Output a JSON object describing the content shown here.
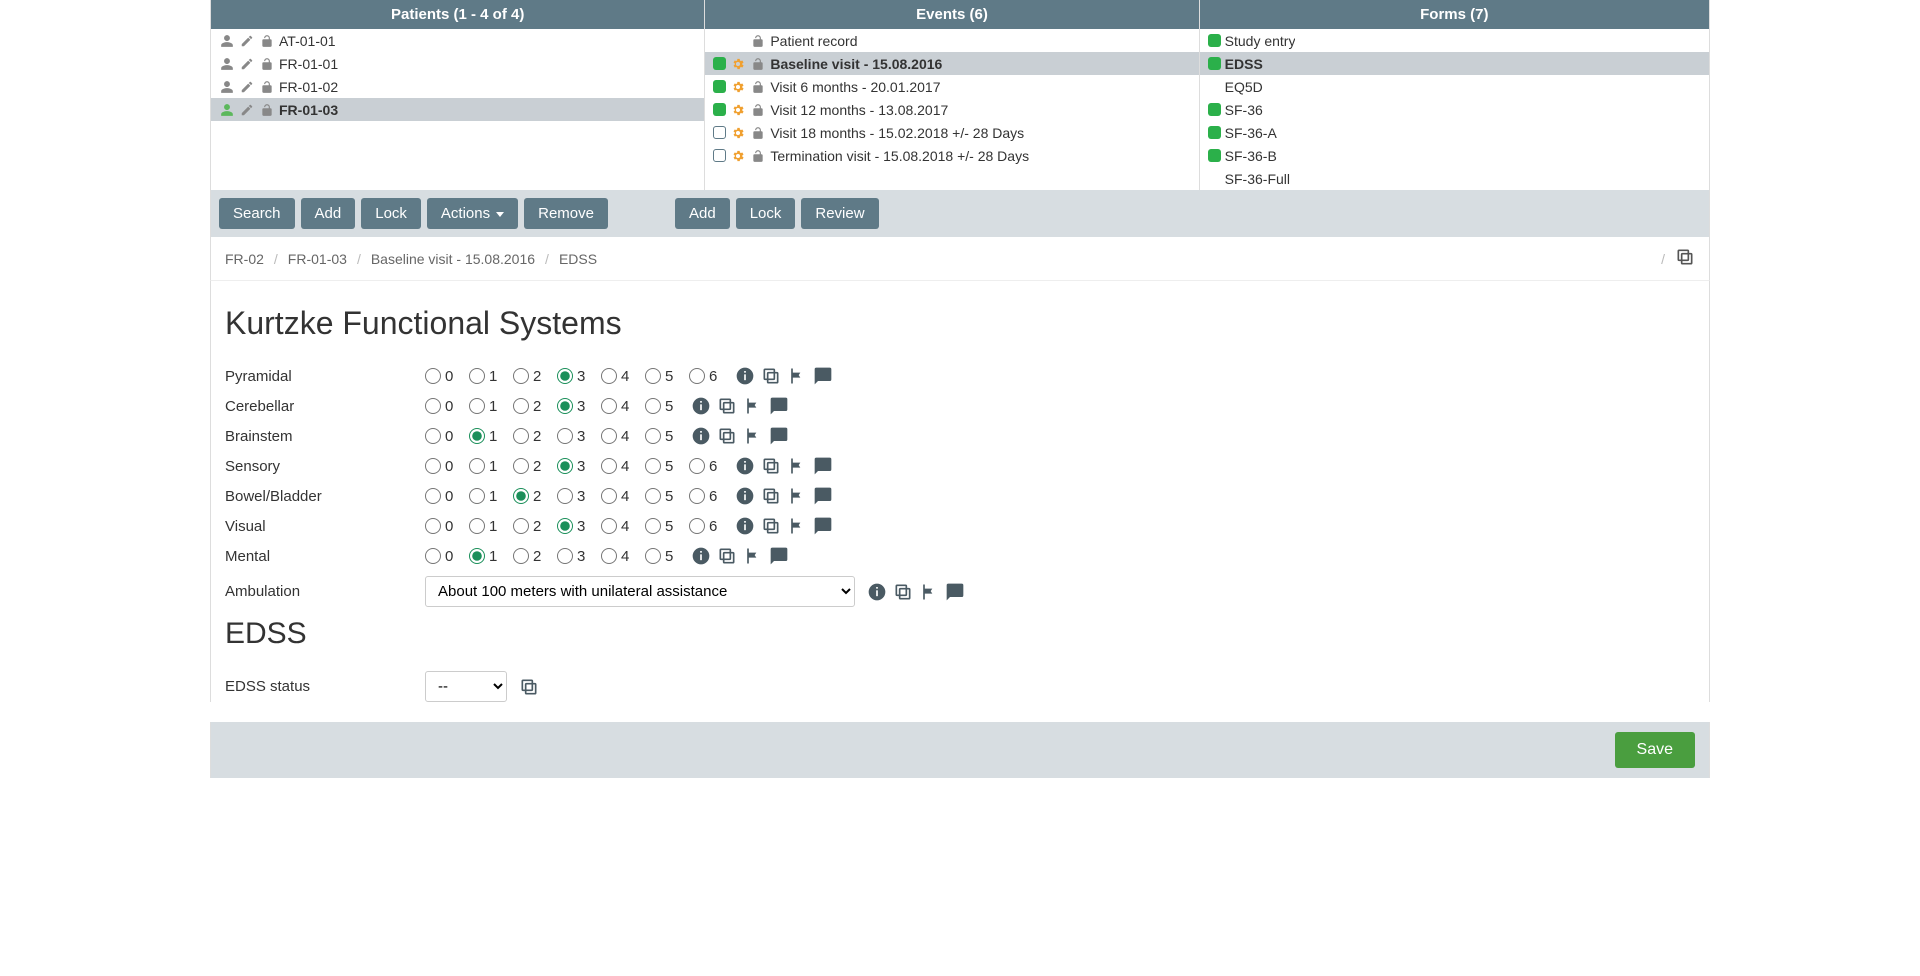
{
  "colors": {
    "header": "#5f7a87",
    "selected": "#c9cfd4",
    "green": "#2bb04a",
    "save": "#4a9e3f"
  },
  "patients": {
    "header": "Patients (1 - 4 of 4)",
    "rows": [
      {
        "id": "AT-01-01",
        "selected": false
      },
      {
        "id": "FR-01-01",
        "selected": false
      },
      {
        "id": "FR-01-02",
        "selected": false
      },
      {
        "id": "FR-01-03",
        "selected": true
      }
    ],
    "buttons": {
      "search": "Search",
      "add": "Add",
      "lock": "Lock",
      "actions": "Actions",
      "remove": "Remove"
    }
  },
  "events": {
    "header": "Events (6)",
    "rows": [
      {
        "label": "Patient record",
        "status": "none",
        "selected": false
      },
      {
        "label": "Baseline visit - 15.08.2016",
        "status": "green",
        "selected": true
      },
      {
        "label": "Visit 6 months - 20.01.2017",
        "status": "green",
        "selected": false
      },
      {
        "label": "Visit 12 months - 13.08.2017",
        "status": "green",
        "selected": false
      },
      {
        "label": "Visit 18 months - 15.02.2018 +/- 28 Days",
        "status": "empty",
        "selected": false
      },
      {
        "label": "Termination visit - 15.08.2018 +/- 28 Days",
        "status": "empty",
        "selected": false
      }
    ],
    "buttons": {
      "add": "Add",
      "lock": "Lock",
      "review": "Review"
    }
  },
  "forms": {
    "header": "Forms (7)",
    "rows": [
      {
        "label": "Study entry",
        "status": "green",
        "selected": false
      },
      {
        "label": "EDSS",
        "status": "green",
        "selected": true
      },
      {
        "label": "EQ5D",
        "status": "none",
        "selected": false
      },
      {
        "label": "SF-36",
        "status": "green",
        "selected": false
      },
      {
        "label": "SF-36-A",
        "status": "green",
        "selected": false
      },
      {
        "label": "SF-36-B",
        "status": "green",
        "selected": false
      },
      {
        "label": "SF-36-Full",
        "status": "none",
        "selected": false
      }
    ]
  },
  "breadcrumb": [
    "FR-02",
    "FR-01-03",
    "Baseline visit - 15.08.2016",
    "EDSS"
  ],
  "section1_title": "Kurtzke Functional Systems",
  "fields": [
    {
      "name": "Pyramidal",
      "max": 6,
      "value": 3
    },
    {
      "name": "Cerebellar",
      "max": 5,
      "value": 3
    },
    {
      "name": "Brainstem",
      "max": 5,
      "value": 1
    },
    {
      "name": "Sensory",
      "max": 6,
      "value": 3
    },
    {
      "name": "Bowel/Bladder",
      "max": 6,
      "value": 2
    },
    {
      "name": "Visual",
      "max": 6,
      "value": 3
    },
    {
      "name": "Mental",
      "max": 5,
      "value": 1
    }
  ],
  "ambulation": {
    "label": "Ambulation",
    "value": "About 100 meters with unilateral assistance"
  },
  "section2_title": "EDSS",
  "edss_status": {
    "label": "EDSS status",
    "value": "--"
  },
  "save_label": "Save"
}
